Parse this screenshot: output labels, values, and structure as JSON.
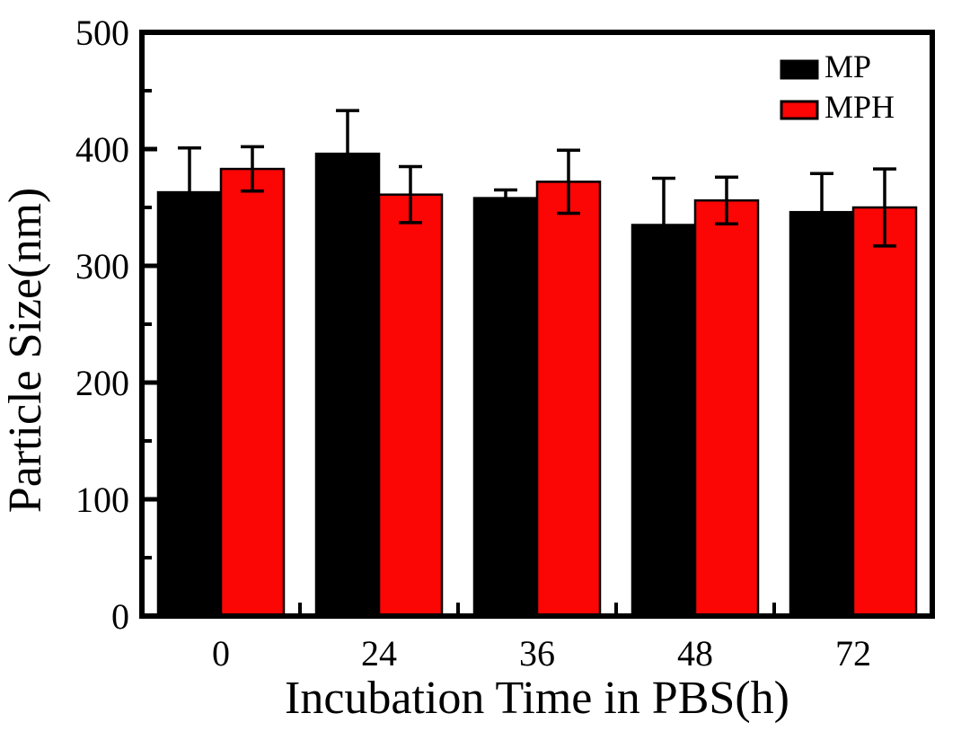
{
  "figure": {
    "background": "#ffffff",
    "axis_color": "#000000"
  },
  "chart_data": {
    "type": "bar",
    "title": "",
    "xlabel": "Incubation Time in PBS(h)",
    "ylabel": "Particle Size(nm)",
    "categories": [
      "0",
      "24",
      "36",
      "48",
      "72"
    ],
    "series": [
      {
        "name": "MP",
        "color": "#000000",
        "values": [
          363,
          396,
          358,
          335,
          346
        ],
        "errors": [
          38,
          37,
          7,
          40,
          33
        ]
      },
      {
        "name": "MPH",
        "color": "#FB0505",
        "values": [
          383,
          361,
          372,
          356,
          350
        ],
        "errors": [
          19,
          24,
          27,
          20,
          33
        ]
      }
    ],
    "ylim": [
      0,
      500
    ],
    "yticks_major": [
      0,
      100,
      200,
      300,
      400,
      500
    ],
    "yticks_minor": [
      50,
      150,
      250,
      350,
      450
    ],
    "grid": false,
    "error_bars": true,
    "bar_outline_color": "#000000",
    "legend_position": "top-right",
    "legend_items": [
      "MP",
      "MPH"
    ]
  }
}
